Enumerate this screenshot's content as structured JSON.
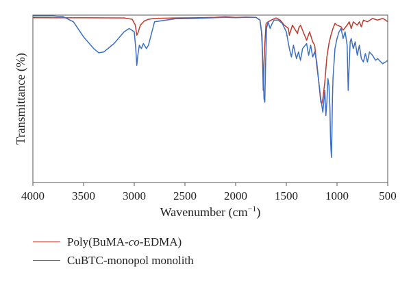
{
  "chart_data": {
    "type": "line",
    "xlabel": "Wavenumber (cm",
    "xlabel_sup": "−1",
    "xlabel_close": ")",
    "ylabel": "Transmittance (%)",
    "xlim": [
      4000,
      500
    ],
    "ylim": [
      0,
      100
    ],
    "x_ticks": [
      "4000",
      "3500",
      "3000",
      "2500",
      "2000",
      "1500",
      "1000",
      "500"
    ],
    "y_ticks_shown": false,
    "grid": false,
    "legend_position": "bottom-left",
    "series": [
      {
        "name": "Poly(BuMA-co-EDMA)",
        "name_parts": [
          "Poly(BuMA-",
          "co",
          "-EDMA)"
        ],
        "color": "#c0392b",
        "x": [
          4000,
          3700,
          3500,
          3100,
          3020,
          2990,
          2975,
          2960,
          2940,
          2900,
          2860,
          2800,
          2600,
          2400,
          2200,
          2100,
          2000,
          1900,
          1800,
          1760,
          1740,
          1728,
          1715,
          1700,
          1680,
          1650,
          1600,
          1560,
          1520,
          1480,
          1470,
          1460,
          1440,
          1420,
          1390,
          1380,
          1360,
          1320,
          1300,
          1270,
          1240,
          1220,
          1200,
          1180,
          1160,
          1150,
          1140,
          1120,
          1100,
          1080,
          1060,
          1040,
          1020,
          1000,
          960,
          940,
          900,
          880,
          860,
          840,
          800,
          780,
          760,
          740,
          700,
          650,
          600,
          550,
          520,
          500
        ],
        "y": [
          98.5,
          98.4,
          98.4,
          98.3,
          97.5,
          94,
          88,
          90,
          94,
          96.5,
          97.5,
          98,
          98.3,
          98.4,
          98.7,
          99,
          98.6,
          98.8,
          98.7,
          97,
          88,
          55,
          80,
          95,
          96,
          97,
          98.3,
          97,
          94,
          92,
          88,
          90,
          94,
          92,
          89,
          92,
          94,
          88,
          85,
          90,
          84,
          82,
          70,
          60,
          48,
          47,
          50,
          60,
          75,
          83,
          88,
          92,
          95,
          94,
          93,
          91,
          94,
          96,
          92,
          96,
          94,
          96,
          93,
          97,
          96,
          98,
          97,
          98,
          97,
          96
        ]
      },
      {
        "name": "CuBTC-monopol monolith",
        "color": "#3a6fc4",
        "x": [
          4000,
          3800,
          3700,
          3600,
          3500,
          3400,
          3350,
          3300,
          3200,
          3100,
          3050,
          3000,
          2985,
          2975,
          2965,
          2950,
          2930,
          2910,
          2880,
          2860,
          2800,
          2600,
          2400,
          2200,
          2100,
          2000,
          1900,
          1800,
          1760,
          1745,
          1730,
          1720,
          1712,
          1705,
          1695,
          1680,
          1660,
          1640,
          1620,
          1580,
          1540,
          1500,
          1470,
          1450,
          1430,
          1400,
          1380,
          1360,
          1340,
          1300,
          1280,
          1260,
          1240,
          1220,
          1200,
          1180,
          1160,
          1140,
          1120,
          1110,
          1100,
          1090,
          1080,
          1070,
          1065,
          1060,
          1055,
          1050,
          1045,
          1040,
          1020,
          1000,
          980,
          960,
          940,
          920,
          900,
          890,
          880,
          870,
          860,
          840,
          820,
          800,
          780,
          760,
          740,
          720,
          700,
          680,
          650,
          620,
          600,
          550,
          520,
          500
        ],
        "y": [
          99.5,
          99.5,
          99,
          96,
          87,
          80,
          77.5,
          78,
          83,
          90,
          92,
          90,
          80,
          70,
          76,
          82,
          80,
          83,
          80,
          82,
          96,
          97.8,
          98,
          98.5,
          98.7,
          98.5,
          98.7,
          98.6,
          97,
          90,
          70,
          50,
          48,
          70,
          92,
          96,
          92,
          95,
          97,
          97,
          95,
          90,
          80,
          75,
          82,
          74,
          78,
          73,
          80,
          83,
          76,
          82,
          75,
          78,
          72,
          60,
          50,
          42,
          55,
          40,
          48,
          62,
          58,
          45,
          28,
          20,
          15,
          30,
          50,
          62,
          80,
          86,
          90,
          92,
          86,
          90,
          82,
          55,
          70,
          84,
          86,
          80,
          84,
          76,
          82,
          74,
          72,
          77,
          72,
          78,
          76,
          73,
          74,
          71,
          72,
          73
        ]
      }
    ]
  }
}
